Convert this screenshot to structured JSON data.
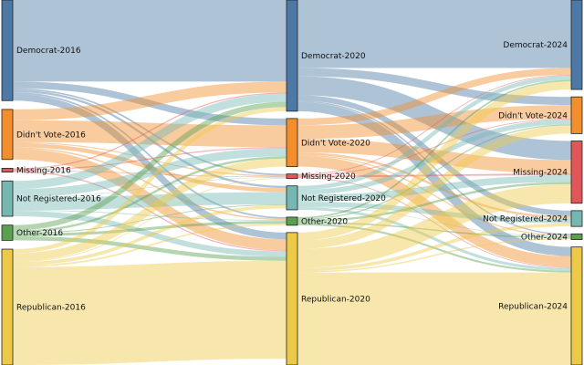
{
  "diagram": {
    "type": "sankey",
    "columns": [
      {
        "year": "2016",
        "nodes": [
          {
            "id": "D16",
            "label": "Democrat-2016",
            "color": "#4e79a7"
          },
          {
            "id": "N16",
            "label": "Didn't Vote-2016",
            "color": "#f28e2b"
          },
          {
            "id": "M16",
            "label": "Missing-2016",
            "color": "#e15759"
          },
          {
            "id": "R16n",
            "label": "Not Registered-2016",
            "color": "#76b7b2"
          },
          {
            "id": "O16",
            "label": "Other-2016",
            "color": "#59a14f"
          },
          {
            "id": "P16",
            "label": "Republican-2016",
            "color": "#edc948"
          }
        ]
      },
      {
        "year": "2020",
        "nodes": [
          {
            "id": "D20",
            "label": "Democrat-2020",
            "color": "#4e79a7"
          },
          {
            "id": "N20",
            "label": "Didn't Vote-2020",
            "color": "#f28e2b"
          },
          {
            "id": "M20",
            "label": "Missing-2020",
            "color": "#e15759"
          },
          {
            "id": "R20n",
            "label": "Not Registered-2020",
            "color": "#76b7b2"
          },
          {
            "id": "O20",
            "label": "Other-2020",
            "color": "#59a14f"
          },
          {
            "id": "P20",
            "label": "Republican-2020",
            "color": "#edc948"
          }
        ]
      },
      {
        "year": "2024",
        "nodes": [
          {
            "id": "D24",
            "label": "Democrat-2024",
            "color": "#4e79a7"
          },
          {
            "id": "N24",
            "label": "Didn't Vote-2024",
            "color": "#f28e2b"
          },
          {
            "id": "M24",
            "label": "Missing-2024",
            "color": "#e15759"
          },
          {
            "id": "R24n",
            "label": "Not Registered-2024",
            "color": "#76b7b2"
          },
          {
            "id": "O24",
            "label": "Other-2024",
            "color": "#59a14f"
          },
          {
            "id": "P24",
            "label": "Republican-2024",
            "color": "#edc948"
          }
        ]
      }
    ],
    "links": [
      {
        "source": "D16",
        "target": "D20",
        "value": 30
      },
      {
        "source": "D16",
        "target": "N20",
        "value": 2.5
      },
      {
        "source": "D16",
        "target": "M20",
        "value": 0.6
      },
      {
        "source": "D16",
        "target": "R20n",
        "value": 0.8
      },
      {
        "source": "D16",
        "target": "O20",
        "value": 0.6
      },
      {
        "source": "D16",
        "target": "P20",
        "value": 2.5
      },
      {
        "source": "N16",
        "target": "D20",
        "value": 4.0
      },
      {
        "source": "N16",
        "target": "N20",
        "value": 8.0
      },
      {
        "source": "N16",
        "target": "M20",
        "value": 0.4
      },
      {
        "source": "N16",
        "target": "R20n",
        "value": 1.5
      },
      {
        "source": "N16",
        "target": "O20",
        "value": 0.5
      },
      {
        "source": "N16",
        "target": "P20",
        "value": 4.0
      },
      {
        "source": "M16",
        "target": "D20",
        "value": 0.4
      },
      {
        "source": "M16",
        "target": "N20",
        "value": 0.4
      },
      {
        "source": "M16",
        "target": "M20",
        "value": 0.2
      },
      {
        "source": "M16",
        "target": "P20",
        "value": 0.4
      },
      {
        "source": "R16n",
        "target": "D20",
        "value": 3.0
      },
      {
        "source": "R16n",
        "target": "N20",
        "value": 3.0
      },
      {
        "source": "R16n",
        "target": "M20",
        "value": 0.2
      },
      {
        "source": "R16n",
        "target": "R20n",
        "value": 4.5
      },
      {
        "source": "R16n",
        "target": "O20",
        "value": 0.3
      },
      {
        "source": "R16n",
        "target": "P20",
        "value": 2.0
      },
      {
        "source": "O16",
        "target": "D20",
        "value": 2.0
      },
      {
        "source": "O16",
        "target": "N20",
        "value": 0.8
      },
      {
        "source": "O16",
        "target": "R20n",
        "value": 0.3
      },
      {
        "source": "O16",
        "target": "O20",
        "value": 1.0
      },
      {
        "source": "O16",
        "target": "P20",
        "value": 1.5
      },
      {
        "source": "P16",
        "target": "D20",
        "value": 1.5
      },
      {
        "source": "P16",
        "target": "N20",
        "value": 3.0
      },
      {
        "source": "P16",
        "target": "M20",
        "value": 0.3
      },
      {
        "source": "P16",
        "target": "R20n",
        "value": 1.2
      },
      {
        "source": "P16",
        "target": "O20",
        "value": 0.6
      },
      {
        "source": "P16",
        "target": "P20",
        "value": 36
      },
      {
        "source": "D20",
        "target": "D24",
        "value": 25
      },
      {
        "source": "D20",
        "target": "N24",
        "value": 3.0
      },
      {
        "source": "D20",
        "target": "M24",
        "value": 7.0
      },
      {
        "source": "D20",
        "target": "R24n",
        "value": 2.0
      },
      {
        "source": "D20",
        "target": "O24",
        "value": 0.5
      },
      {
        "source": "D20",
        "target": "P24",
        "value": 3.4
      },
      {
        "source": "N20",
        "target": "D24",
        "value": 2.5
      },
      {
        "source": "N20",
        "target": "N24",
        "value": 5.0
      },
      {
        "source": "N20",
        "target": "M24",
        "value": 5.0
      },
      {
        "source": "N20",
        "target": "R24n",
        "value": 0.8
      },
      {
        "source": "N20",
        "target": "O24",
        "value": 0.4
      },
      {
        "source": "N20",
        "target": "P24",
        "value": 4.0
      },
      {
        "source": "M20",
        "target": "D24",
        "value": 0.3
      },
      {
        "source": "M20",
        "target": "N24",
        "value": 0.3
      },
      {
        "source": "M20",
        "target": "M24",
        "value": 0.6
      },
      {
        "source": "M20",
        "target": "P24",
        "value": 0.3
      },
      {
        "source": "R20n",
        "target": "D24",
        "value": 1.5
      },
      {
        "source": "R20n",
        "target": "N24",
        "value": 1.8
      },
      {
        "source": "R20n",
        "target": "M24",
        "value": 2.5
      },
      {
        "source": "R20n",
        "target": "R24n",
        "value": 1.8
      },
      {
        "source": "R20n",
        "target": "O24",
        "value": 0.2
      },
      {
        "source": "R20n",
        "target": "P24",
        "value": 1.0
      },
      {
        "source": "O20",
        "target": "D24",
        "value": 0.6
      },
      {
        "source": "O20",
        "target": "N24",
        "value": 0.4
      },
      {
        "source": "O20",
        "target": "M24",
        "value": 0.8
      },
      {
        "source": "O20",
        "target": "O24",
        "value": 0.5
      },
      {
        "source": "O20",
        "target": "P24",
        "value": 0.7
      },
      {
        "source": "P20",
        "target": "D24",
        "value": 3.0
      },
      {
        "source": "P20",
        "target": "N24",
        "value": 3.0
      },
      {
        "source": "P20",
        "target": "M24",
        "value": 7.0
      },
      {
        "source": "P20",
        "target": "R24n",
        "value": 1.2
      },
      {
        "source": "P20",
        "target": "O24",
        "value": 0.5
      },
      {
        "source": "P20",
        "target": "P24",
        "value": 34
      }
    ]
  }
}
